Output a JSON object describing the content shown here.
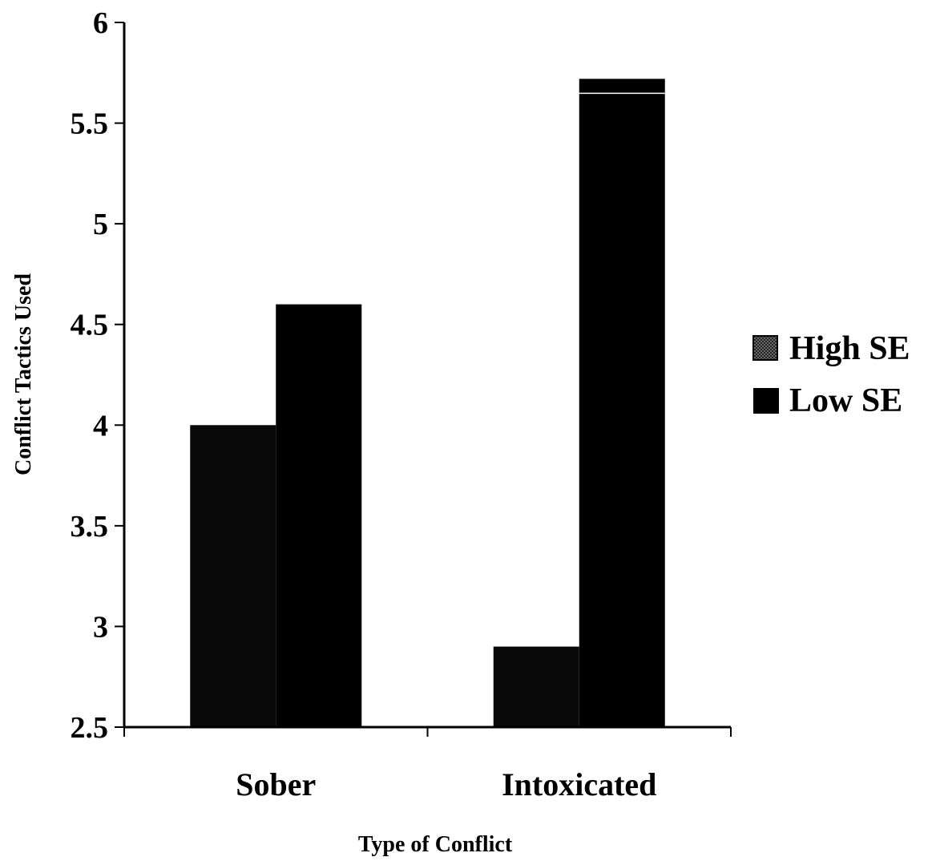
{
  "chart_data": {
    "type": "bar",
    "title": "",
    "xlabel": "Type of Conflict",
    "ylabel": "Conflict Tactics Used",
    "categories": [
      "Sober",
      "Intoxicated"
    ],
    "series": [
      {
        "name": "High SE",
        "values": [
          4.0,
          2.9
        ],
        "color": "#0a0a0a",
        "pattern": "cross-hatch"
      },
      {
        "name": "Low SE",
        "values": [
          4.6,
          5.72
        ],
        "color": "#000000",
        "pattern": "solid"
      }
    ],
    "ylim": [
      2.5,
      6
    ],
    "yticks": [
      "2.5",
      "3",
      "3.5",
      "4",
      "4.5",
      "5",
      "5.5",
      "6"
    ],
    "grid": false,
    "legend_position": "right"
  }
}
